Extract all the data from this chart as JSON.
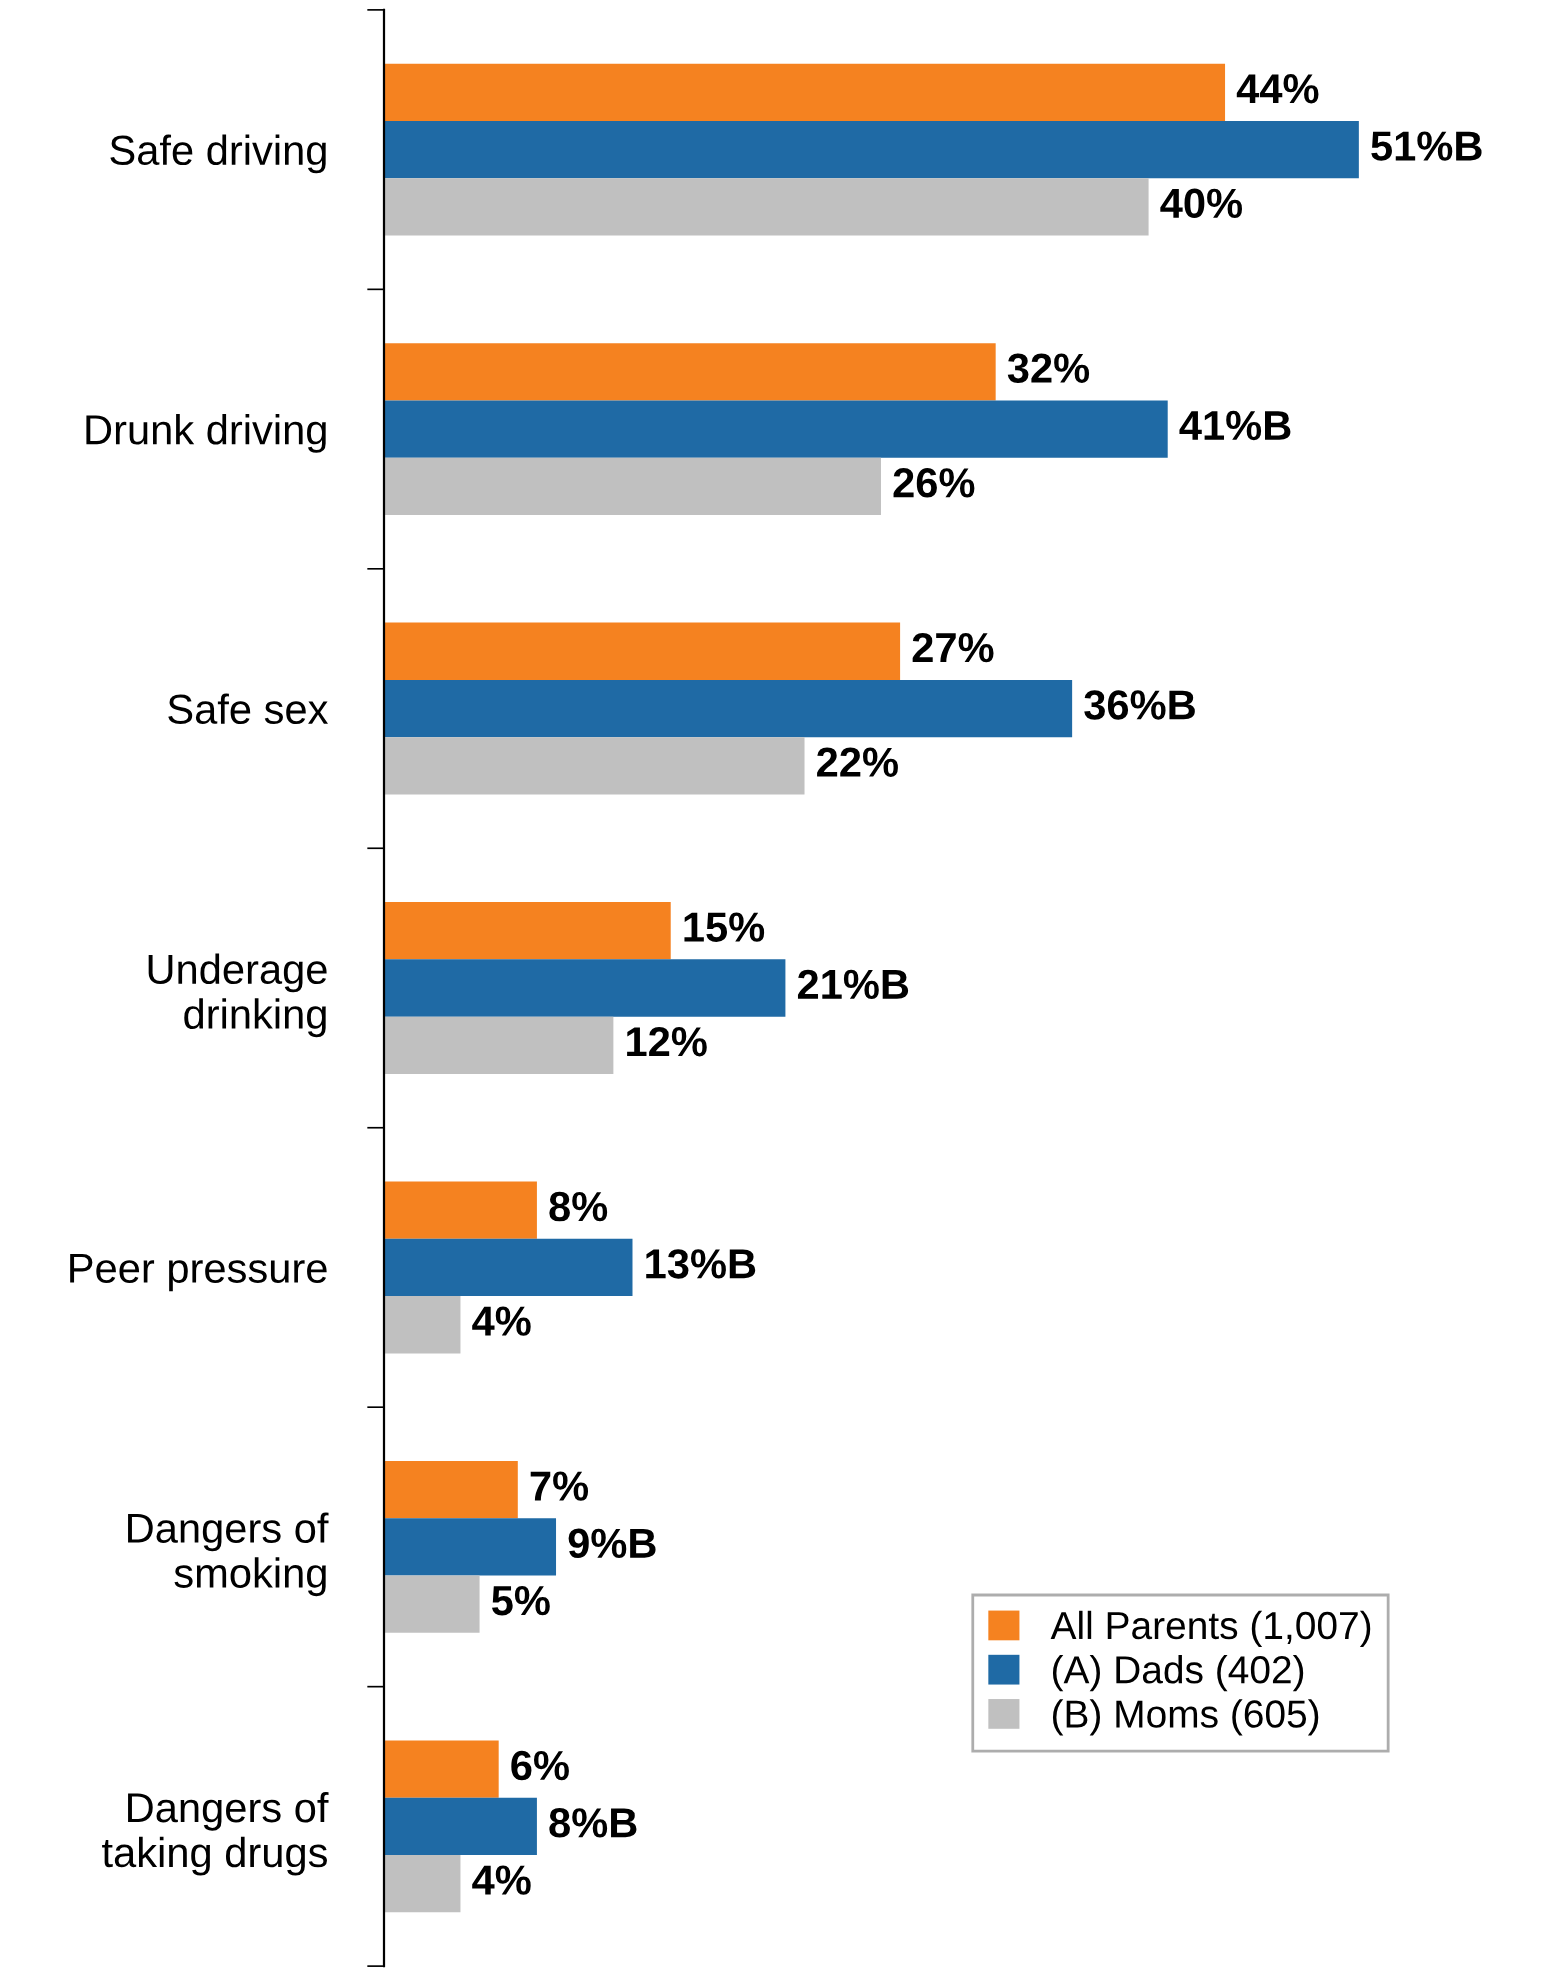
{
  "chart_data": {
    "type": "bar",
    "orientation": "horizontal",
    "categories": [
      "Safe driving",
      "Drunk driving",
      "Safe sex",
      "Underage\ndrinking",
      "Peer pressure",
      "Dangers of\nsmoking",
      "Dangers of\ntaking drugs"
    ],
    "series": [
      {
        "name": "All Parents (1,007)",
        "color": "#f58220",
        "values": [
          44,
          32,
          27,
          15,
          8,
          7,
          6
        ],
        "value_labels": [
          "44%",
          "32%",
          "27%",
          "15%",
          "8%",
          "7%",
          "6%"
        ]
      },
      {
        "name": "(A) Dads (402)",
        "color": "#1f6aa5",
        "values": [
          51,
          41,
          36,
          21,
          13,
          9,
          8
        ],
        "value_labels": [
          "51%B",
          "41%B",
          "36%B",
          "21%B",
          "13%B",
          "9%B",
          "8%B"
        ]
      },
      {
        "name": "(B) Moms (605)",
        "color": "#c0c0c0",
        "values": [
          40,
          26,
          22,
          12,
          4,
          5,
          4
        ],
        "value_labels": [
          "40%",
          "26%",
          "22%",
          "12%",
          "4%",
          "5%",
          "4%"
        ]
      }
    ],
    "tick_labels": "y",
    "legend": "bottom right",
    "grid": false
  }
}
